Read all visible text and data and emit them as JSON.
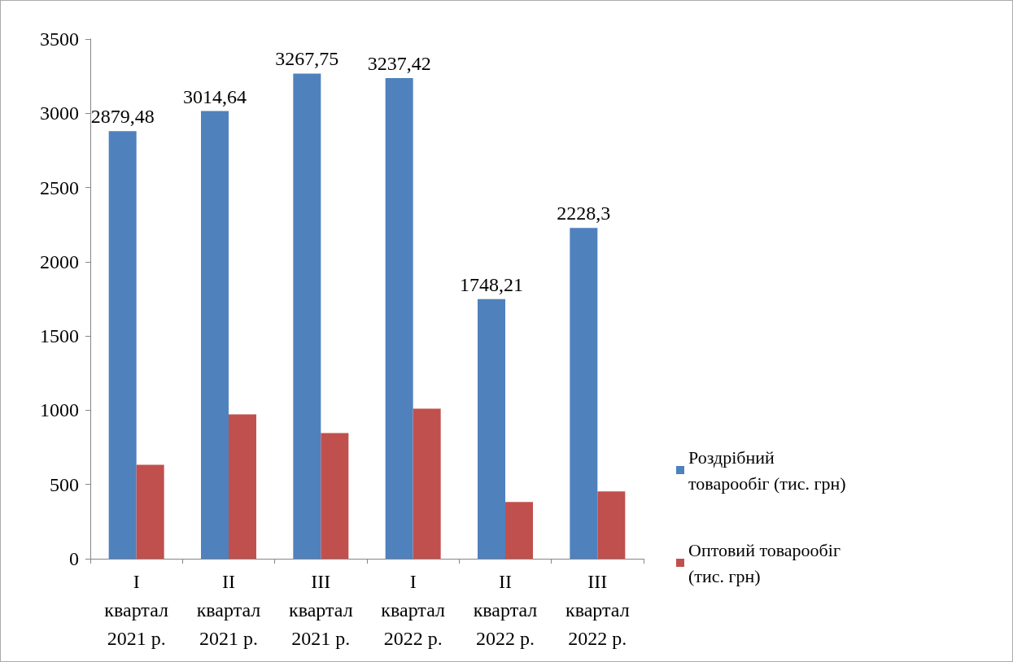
{
  "chart_data": {
    "type": "bar",
    "categories": [
      "I\nквартал\n2021 р.",
      "II\nквартал\n2021 р.",
      "III\nквартал\n2021 р.",
      "I\nквартал\n2022 р.",
      "II\nквартал\n2022 р.",
      "III\nквартал\n2022 р."
    ],
    "series": [
      {
        "name": "Роздрібний товарообіг (тис. грн)",
        "color": "#4f81bd",
        "values": [
          2879.48,
          3014.64,
          3267.75,
          3237.42,
          1748.21,
          2228.3
        ],
        "value_labels": [
          "2879,48",
          "3014,64",
          "3267,75",
          "3237,42",
          "1748,21",
          "2228,3"
        ]
      },
      {
        "name": "Оптовий товарообіг (тис. грн)",
        "color": "#c0504d",
        "values": [
          633,
          972,
          846,
          1010,
          382,
          453
        ]
      }
    ],
    "ylim": [
      0,
      3500
    ],
    "yticks": [
      0,
      500,
      1000,
      1500,
      2000,
      2500,
      3000,
      3500
    ],
    "grid": false,
    "legend": "right"
  }
}
